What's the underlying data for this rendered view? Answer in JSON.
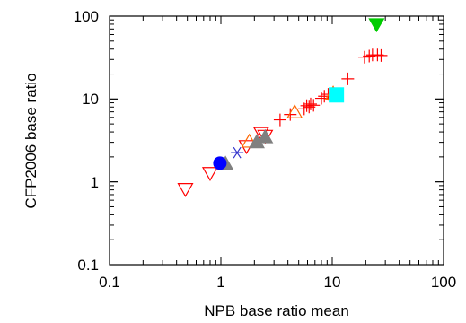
{
  "chart_data": {
    "type": "scatter",
    "xscale": "log",
    "yscale": "log",
    "xlim": [
      0.1,
      100
    ],
    "ylim": [
      0.1,
      100
    ],
    "xlabel": "NPB base ratio mean",
    "ylabel": "CFP2006 base ratio",
    "xticks": [
      "0.1",
      "1",
      "10",
      "100"
    ],
    "yticks": [
      "0.1",
      "1",
      "10",
      "100"
    ],
    "grid": false,
    "series": [
      {
        "marker": "plus",
        "color": "#ff0000",
        "filled": false,
        "points": [
          [
            3.4,
            5.6
          ],
          [
            4.2,
            6.5
          ],
          [
            5.6,
            7.6
          ],
          [
            5.9,
            8.3
          ],
          [
            6.2,
            8.0
          ],
          [
            6.4,
            8.7
          ],
          [
            6.8,
            8.4
          ],
          [
            8.0,
            10.2
          ],
          [
            8.5,
            10.8
          ],
          [
            9.2,
            11.4
          ],
          [
            13.8,
            17.5
          ],
          [
            19.5,
            32
          ],
          [
            21.5,
            33
          ],
          [
            23,
            34
          ],
          [
            25.5,
            34
          ],
          [
            27.5,
            33.5
          ]
        ]
      },
      {
        "marker": "triangle-down",
        "color": "#ff0000",
        "filled": false,
        "points": [
          [
            0.48,
            0.82
          ],
          [
            0.8,
            1.28
          ],
          [
            1.7,
            2.7
          ],
          [
            2.3,
            3.9
          ],
          [
            2.5,
            3.6
          ]
        ]
      },
      {
        "marker": "triangle-up",
        "color": "#ff6600",
        "filled": false,
        "points": [
          [
            1.8,
            3.05
          ],
          [
            4.6,
            6.9
          ],
          [
            10.2,
            11.6
          ]
        ]
      },
      {
        "marker": "triangle-up",
        "color": "#808080",
        "filled": true,
        "points": [
          [
            1.1,
            1.65
          ],
          [
            2.1,
            3.0
          ],
          [
            2.5,
            3.45
          ]
        ]
      },
      {
        "marker": "circle",
        "color": "#0000ff",
        "filled": true,
        "points": [
          [
            0.98,
            1.68
          ]
        ]
      },
      {
        "marker": "asterisk",
        "color": "#3333cc",
        "filled": false,
        "points": [
          [
            1.4,
            2.25
          ]
        ]
      },
      {
        "marker": "square",
        "color": "#00ffff",
        "filled": true,
        "points": [
          [
            10.9,
            11.2
          ]
        ]
      },
      {
        "marker": "triangle-down",
        "color": "#00cc00",
        "filled": true,
        "points": [
          [
            25,
            80
          ]
        ]
      }
    ]
  }
}
